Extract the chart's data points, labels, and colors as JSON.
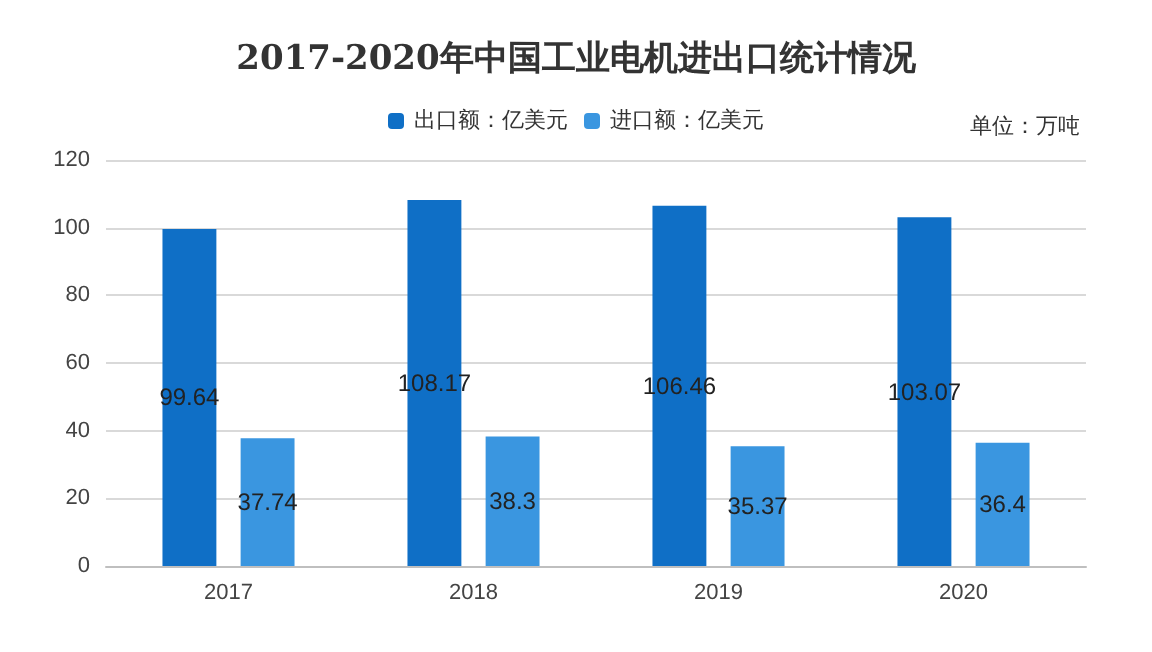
{
  "chart_data": {
    "type": "bar",
    "title": "2017-2020年中国工业电机进出口统计情况",
    "annotations": [
      "单位：万吨"
    ],
    "categories": [
      "2017",
      "2018",
      "2019",
      "2020"
    ],
    "series": [
      {
        "name": "出口额：亿美元",
        "color": "#0f6fc6",
        "values": [
          99.64,
          108.17,
          106.46,
          103.07
        ]
      },
      {
        "name": "进口额：亿美元",
        "color": "#3a96e0",
        "values": [
          37.74,
          38.3,
          35.37,
          36.4
        ]
      }
    ],
    "ylim": [
      0,
      120
    ],
    "yticks": [
      0,
      20,
      40,
      60,
      80,
      100,
      120
    ],
    "grid": "y",
    "legend": "top",
    "data_labels": true
  }
}
